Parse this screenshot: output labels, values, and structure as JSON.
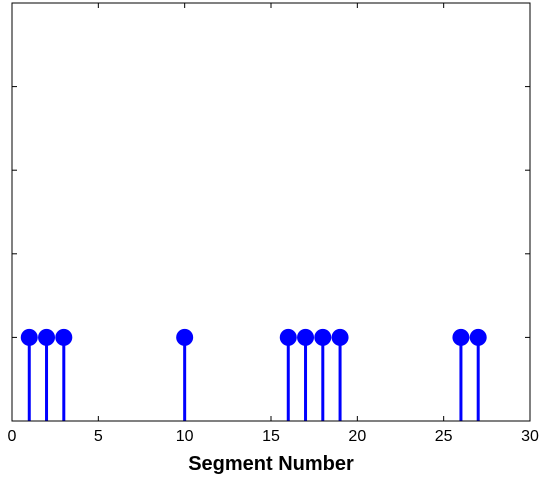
{
  "chart_data": {
    "type": "stem",
    "title": "",
    "xlabel": "Segment Number",
    "ylabel": "",
    "xlim": [
      0,
      30
    ],
    "ylim": [
      0,
      5
    ],
    "xticks": [
      0,
      5,
      10,
      15,
      20,
      25,
      30
    ],
    "yticks": [
      0,
      1,
      2,
      3,
      4,
      5
    ],
    "show_ytick_labels": false,
    "grid": false,
    "series": [
      {
        "x": [
          1,
          2,
          3,
          10,
          16,
          17,
          18,
          19,
          26,
          27
        ],
        "y": [
          1,
          1,
          1,
          1,
          1,
          1,
          1,
          1,
          1,
          1
        ]
      }
    ],
    "colors": {
      "stem": "#0000ff",
      "axes": "#000000",
      "background": "#ffffff"
    }
  }
}
